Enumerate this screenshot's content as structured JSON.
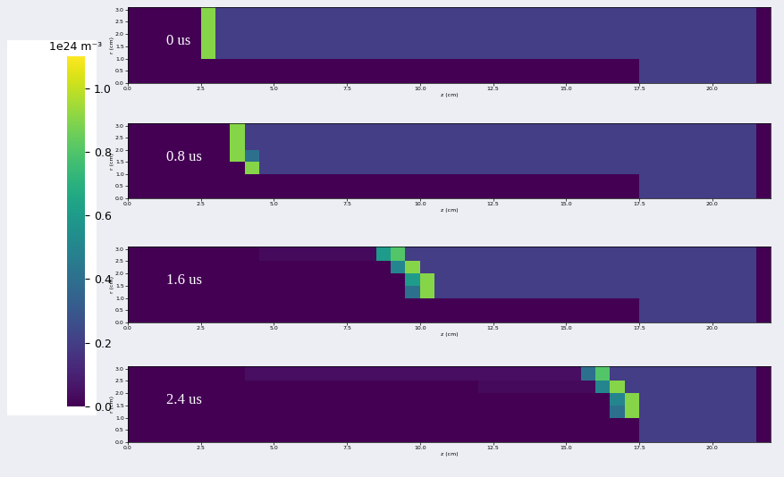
{
  "chart_data": {
    "type": "heatmap",
    "xlabel": "z (cm)",
    "ylabel": "r (cm)",
    "color": "viridis",
    "xlim": [
      0,
      22
    ],
    "ylim": [
      0,
      3.1
    ],
    "xticks": [
      {
        "value": 0,
        "label": "0.0"
      },
      2.5,
      {
        "value": 5,
        "label": "5.0"
      },
      7.5,
      {
        "value": 10,
        "label": "10.0"
      },
      12.5,
      {
        "value": 15,
        "label": "15.0"
      },
      17.5,
      {
        "value": 20,
        "label": "20.0"
      }
    ],
    "yticks": [
      {
        "value": 0,
        "label": "0.0"
      },
      0.5,
      {
        "value": 1,
        "label": "1.0"
      },
      1.5,
      {
        "value": 2,
        "label": "2.0"
      },
      2.5,
      {
        "value": 3,
        "label": "3.0"
      }
    ],
    "z_edges": [
      0,
      0.5,
      1,
      1.5,
      2,
      2.5,
      3,
      3.5,
      4,
      4.5,
      5,
      5.5,
      6,
      6.5,
      7,
      7.5,
      8,
      8.5,
      9,
      9.5,
      10,
      10.5,
      11,
      11.5,
      12,
      12.5,
      13,
      13.5,
      14,
      14.5,
      15,
      15.5,
      16,
      16.5,
      17,
      17.5,
      18,
      18.5,
      19,
      19.5,
      20,
      20.5,
      21,
      21.5,
      22
    ],
    "r_edges": [
      0,
      0.5,
      1,
      1.5,
      2,
      2.5,
      3.1
    ],
    "colorbar_label": "1e24 m⁻³",
    "colorbar_lim": [
      0,
      1.1
    ],
    "colorbar_ticks": [
      {
        "value": 0,
        "label": "0.0"
      },
      0.2,
      0.4,
      0.6,
      0.8,
      {
        "value": 1,
        "label": "1.0"
      }
    ],
    "panels": [
      {
        "label": "0 us",
        "cells": [
          [
            0,
            0,
            0,
            0,
            0,
            0,
            0,
            0,
            0,
            0,
            0,
            0,
            0,
            0,
            0,
            0,
            0,
            0,
            0,
            0,
            0,
            0,
            0,
            0,
            0,
            0,
            0,
            0,
            0,
            0,
            0,
            0,
            0,
            0,
            0,
            0.2,
            0.2,
            0.2,
            0.2,
            0.2,
            0.2,
            0.2,
            0.2,
            0
          ],
          [
            0,
            0,
            0,
            0,
            0,
            0,
            0,
            0,
            0,
            0,
            0,
            0,
            0,
            0,
            0,
            0,
            0,
            0,
            0,
            0,
            0,
            0,
            0,
            0,
            0,
            0,
            0,
            0,
            0,
            0,
            0,
            0,
            0,
            0,
            0,
            0.2,
            0.2,
            0.2,
            0.2,
            0.2,
            0.2,
            0.2,
            0.2,
            0
          ],
          [
            0,
            0,
            0,
            0,
            0,
            0.9,
            0.2,
            0.2,
            0.2,
            0.2,
            0.2,
            0.2,
            0.2,
            0.2,
            0.2,
            0.2,
            0.2,
            0.2,
            0.2,
            0.2,
            0.2,
            0.2,
            0.2,
            0.2,
            0.2,
            0.2,
            0.2,
            0.2,
            0.2,
            0.2,
            0.2,
            0.2,
            0.2,
            0.2,
            0.2,
            0.2,
            0.2,
            0.2,
            0.2,
            0.2,
            0.2,
            0.2,
            0.2,
            0
          ],
          [
            0,
            0,
            0,
            0,
            0,
            0.9,
            0.2,
            0.2,
            0.2,
            0.2,
            0.2,
            0.2,
            0.2,
            0.2,
            0.2,
            0.2,
            0.2,
            0.2,
            0.2,
            0.2,
            0.2,
            0.2,
            0.2,
            0.2,
            0.2,
            0.2,
            0.2,
            0.2,
            0.2,
            0.2,
            0.2,
            0.2,
            0.2,
            0.2,
            0.2,
            0.2,
            0.2,
            0.2,
            0.2,
            0.2,
            0.2,
            0.2,
            0.2,
            0
          ],
          [
            0,
            0,
            0,
            0,
            0,
            0.9,
            0.2,
            0.2,
            0.2,
            0.2,
            0.2,
            0.2,
            0.2,
            0.2,
            0.2,
            0.2,
            0.2,
            0.2,
            0.2,
            0.2,
            0.2,
            0.2,
            0.2,
            0.2,
            0.2,
            0.2,
            0.2,
            0.2,
            0.2,
            0.2,
            0.2,
            0.2,
            0.2,
            0.2,
            0.2,
            0.2,
            0.2,
            0.2,
            0.2,
            0.2,
            0.2,
            0.2,
            0.2,
            0
          ],
          [
            0,
            0,
            0,
            0,
            0,
            0.9,
            0.2,
            0.2,
            0.2,
            0.2,
            0.2,
            0.2,
            0.2,
            0.2,
            0.2,
            0.2,
            0.2,
            0.2,
            0.2,
            0.2,
            0.2,
            0.2,
            0.2,
            0.2,
            0.2,
            0.2,
            0.2,
            0.2,
            0.2,
            0.2,
            0.2,
            0.2,
            0.2,
            0.2,
            0.2,
            0.2,
            0.2,
            0.2,
            0.2,
            0.2,
            0.2,
            0.2,
            0.2,
            0
          ]
        ]
      },
      {
        "label": "0.8 us",
        "cells": [
          [
            0,
            0,
            0,
            0,
            0,
            0,
            0,
            0,
            0,
            0,
            0,
            0,
            0,
            0,
            0,
            0,
            0,
            0,
            0,
            0,
            0,
            0,
            0,
            0,
            0,
            0,
            0,
            0,
            0,
            0,
            0,
            0,
            0,
            0,
            0,
            0.2,
            0.2,
            0.2,
            0.2,
            0.2,
            0.2,
            0.2,
            0.2,
            0
          ],
          [
            0,
            0,
            0,
            0,
            0,
            0,
            0,
            0,
            0,
            0,
            0,
            0,
            0,
            0,
            0,
            0,
            0,
            0,
            0,
            0,
            0,
            0,
            0,
            0,
            0,
            0,
            0,
            0,
            0,
            0,
            0,
            0,
            0,
            0,
            0,
            0.2,
            0.2,
            0.2,
            0.2,
            0.2,
            0.2,
            0.2,
            0.2,
            0
          ],
          [
            0,
            0,
            0,
            0,
            0,
            0,
            0,
            0,
            0.9,
            0.2,
            0.2,
            0.2,
            0.2,
            0.2,
            0.2,
            0.2,
            0.2,
            0.2,
            0.2,
            0.2,
            0.2,
            0.2,
            0.2,
            0.2,
            0.2,
            0.2,
            0.2,
            0.2,
            0.2,
            0.2,
            0.2,
            0.2,
            0.2,
            0.2,
            0.2,
            0.2,
            0.2,
            0.2,
            0.2,
            0.2,
            0.2,
            0.2,
            0.2,
            0
          ],
          [
            0,
            0,
            0,
            0,
            0,
            0,
            0,
            0.9,
            0.4,
            0.2,
            0.2,
            0.2,
            0.2,
            0.2,
            0.2,
            0.2,
            0.2,
            0.2,
            0.2,
            0.2,
            0.2,
            0.2,
            0.2,
            0.2,
            0.2,
            0.2,
            0.2,
            0.2,
            0.2,
            0.2,
            0.2,
            0.2,
            0.2,
            0.2,
            0.2,
            0.2,
            0.2,
            0.2,
            0.2,
            0.2,
            0.2,
            0.2,
            0.2,
            0
          ],
          [
            0,
            0,
            0,
            0,
            0,
            0,
            0,
            0.9,
            0.2,
            0.2,
            0.2,
            0.2,
            0.2,
            0.2,
            0.2,
            0.2,
            0.2,
            0.2,
            0.2,
            0.2,
            0.2,
            0.2,
            0.2,
            0.2,
            0.2,
            0.2,
            0.2,
            0.2,
            0.2,
            0.2,
            0.2,
            0.2,
            0.2,
            0.2,
            0.2,
            0.2,
            0.2,
            0.2,
            0.2,
            0.2,
            0.2,
            0.2,
            0.2,
            0
          ],
          [
            0,
            0,
            0,
            0,
            0,
            0,
            0,
            0.9,
            0.2,
            0.2,
            0.2,
            0.2,
            0.2,
            0.2,
            0.2,
            0.2,
            0.2,
            0.2,
            0.2,
            0.2,
            0.2,
            0.2,
            0.2,
            0.2,
            0.2,
            0.2,
            0.2,
            0.2,
            0.2,
            0.2,
            0.2,
            0.2,
            0.2,
            0.2,
            0.2,
            0.2,
            0.2,
            0.2,
            0.2,
            0.2,
            0.2,
            0.2,
            0.2,
            0
          ]
        ]
      },
      {
        "label": "1.6 us",
        "cells": [
          [
            0,
            0,
            0,
            0,
            0,
            0,
            0,
            0,
            0,
            0,
            0,
            0,
            0,
            0,
            0,
            0,
            0,
            0,
            0,
            0,
            0,
            0,
            0,
            0,
            0,
            0,
            0,
            0,
            0,
            0,
            0,
            0,
            0,
            0,
            0,
            0.2,
            0.2,
            0.2,
            0.2,
            0.2,
            0.2,
            0.2,
            0.2,
            0
          ],
          [
            0,
            0,
            0,
            0,
            0,
            0,
            0,
            0,
            0,
            0,
            0,
            0,
            0,
            0,
            0,
            0,
            0,
            0,
            0,
            0,
            0,
            0,
            0,
            0,
            0,
            0,
            0,
            0,
            0,
            0,
            0,
            0,
            0,
            0,
            0,
            0.2,
            0.2,
            0.2,
            0.2,
            0.2,
            0.2,
            0.2,
            0.2,
            0
          ],
          [
            0,
            0,
            0,
            0,
            0,
            0,
            0,
            0,
            0,
            0,
            0,
            0,
            0,
            0,
            0,
            0,
            0,
            0,
            0,
            0.4,
            0.9,
            0.2,
            0.2,
            0.2,
            0.2,
            0.2,
            0.2,
            0.2,
            0.2,
            0.2,
            0.2,
            0.2,
            0.2,
            0.2,
            0.2,
            0.2,
            0.2,
            0.2,
            0.2,
            0.2,
            0.2,
            0.2,
            0.2,
            0
          ],
          [
            0,
            0,
            0,
            0,
            0,
            0,
            0,
            0,
            0,
            0,
            0,
            0,
            0,
            0,
            0,
            0,
            0,
            0,
            0,
            0.6,
            0.9,
            0.2,
            0.2,
            0.2,
            0.2,
            0.2,
            0.2,
            0.2,
            0.2,
            0.2,
            0.2,
            0.2,
            0.2,
            0.2,
            0.2,
            0.2,
            0.2,
            0.2,
            0.2,
            0.2,
            0.2,
            0.2,
            0.2,
            0
          ],
          [
            0,
            0,
            0,
            0,
            0,
            0,
            0,
            0,
            0,
            0,
            0,
            0,
            0,
            0,
            0,
            0,
            0,
            0,
            0.5,
            0.9,
            0.2,
            0.2,
            0.2,
            0.2,
            0.2,
            0.2,
            0.2,
            0.2,
            0.2,
            0.2,
            0.2,
            0.2,
            0.2,
            0.2,
            0.2,
            0.2,
            0.2,
            0.2,
            0.2,
            0.2,
            0.2,
            0.2,
            0.2,
            0
          ],
          [
            0,
            0,
            0,
            0,
            0,
            0,
            0,
            0,
            0,
            0.03,
            0.03,
            0.03,
            0.03,
            0.03,
            0.03,
            0.03,
            0.03,
            0.6,
            0.8,
            0.2,
            0.2,
            0.2,
            0.2,
            0.2,
            0.2,
            0.2,
            0.2,
            0.2,
            0.2,
            0.2,
            0.2,
            0.2,
            0.2,
            0.2,
            0.2,
            0.2,
            0.2,
            0.2,
            0.2,
            0.2,
            0.2,
            0.2,
            0.2,
            0
          ]
        ]
      },
      {
        "label": "2.4 us",
        "cells": [
          [
            0,
            0,
            0,
            0,
            0,
            0,
            0,
            0,
            0,
            0,
            0,
            0,
            0,
            0,
            0,
            0,
            0,
            0,
            0,
            0,
            0,
            0,
            0,
            0,
            0,
            0,
            0,
            0,
            0,
            0,
            0,
            0,
            0,
            0,
            0,
            0.2,
            0.2,
            0.2,
            0.2,
            0.2,
            0.2,
            0.2,
            0.2,
            0
          ],
          [
            0,
            0,
            0,
            0,
            0,
            0,
            0,
            0,
            0,
            0,
            0,
            0,
            0,
            0,
            0,
            0,
            0,
            0,
            0,
            0,
            0,
            0,
            0,
            0,
            0,
            0,
            0,
            0,
            0,
            0,
            0,
            0,
            0,
            0,
            0,
            0.2,
            0.2,
            0.2,
            0.2,
            0.2,
            0.2,
            0.2,
            0.2,
            0
          ],
          [
            0,
            0,
            0,
            0,
            0,
            0,
            0,
            0,
            0,
            0,
            0,
            0,
            0,
            0,
            0,
            0,
            0,
            0,
            0,
            0,
            0,
            0,
            0,
            0,
            0,
            0,
            0,
            0,
            0,
            0,
            0,
            0,
            0,
            0.4,
            0.9,
            0.2,
            0.2,
            0.2,
            0.2,
            0.2,
            0.2,
            0.2,
            0.2,
            0
          ],
          [
            0,
            0,
            0,
            0,
            0,
            0,
            0,
            0,
            0,
            0,
            0,
            0,
            0,
            0,
            0,
            0,
            0,
            0,
            0,
            0,
            0,
            0,
            0,
            0,
            0,
            0,
            0,
            0,
            0,
            0,
            0,
            0,
            0,
            0.5,
            0.9,
            0.2,
            0.2,
            0.2,
            0.2,
            0.2,
            0.2,
            0.2,
            0.2,
            0
          ],
          [
            0,
            0,
            0,
            0,
            0,
            0,
            0,
            0,
            0,
            0,
            0,
            0,
            0,
            0,
            0,
            0,
            0,
            0,
            0,
            0,
            0,
            0,
            0,
            0,
            0.03,
            0.03,
            0.03,
            0.03,
            0.03,
            0.03,
            0.03,
            0.03,
            0.5,
            0.9,
            0.2,
            0.2,
            0.2,
            0.2,
            0.2,
            0.2,
            0.2,
            0.2,
            0.2,
            0
          ],
          [
            0,
            0,
            0,
            0,
            0,
            0,
            0,
            0,
            0.04,
            0.04,
            0.04,
            0.04,
            0.04,
            0.04,
            0.04,
            0.04,
            0.04,
            0.04,
            0.04,
            0.04,
            0.04,
            0.04,
            0.04,
            0.04,
            0.04,
            0.04,
            0.04,
            0.04,
            0.04,
            0.04,
            0.04,
            0.4,
            0.8,
            0.2,
            0.2,
            0.2,
            0.2,
            0.2,
            0.2,
            0.2,
            0.2,
            0.2,
            0.2,
            0
          ]
        ]
      }
    ]
  }
}
